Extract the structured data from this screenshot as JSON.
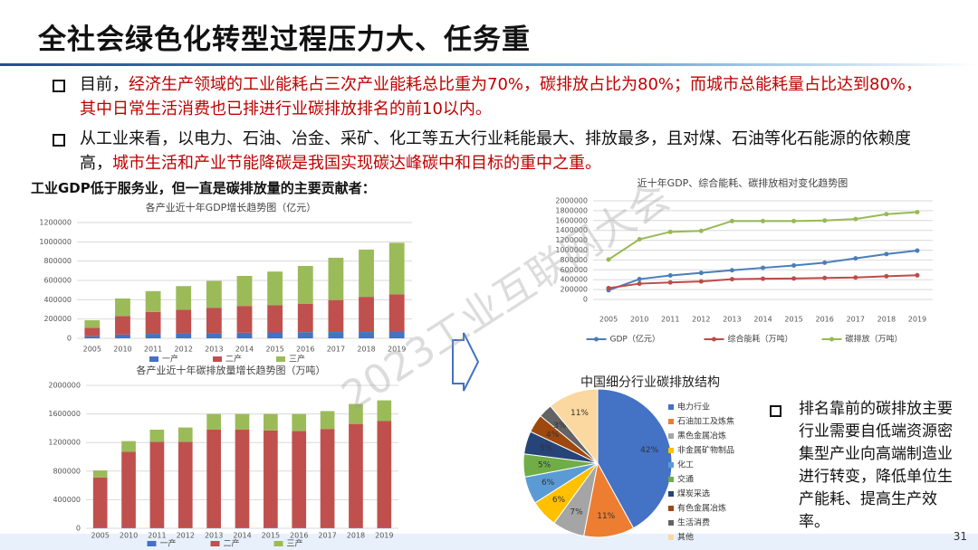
{
  "title": "全社会绿色化转型过程压力大、任务重",
  "bullets": [
    {
      "segments": [
        {
          "text": "目前，",
          "color": "#111111"
        },
        {
          "text": "经济生产领域的工业能耗占三次产业能耗总比重为70%，碳排放占比为80%；而城市总能耗量占比达到80%，其中日常生活消费也已排进行业碳排放排名的前10以内。",
          "color": "#c00000"
        }
      ]
    },
    {
      "segments": [
        {
          "text": "从工业来看，以电力、石油、冶金、采矿、化工等五大行业耗能最大、排放最多，且对煤、石油等化石能源的依赖度高，",
          "color": "#111111"
        },
        {
          "text": "城市生活和产业节能降碳是我国实现碳达峰碳中和目标的重中之重。",
          "color": "#c00000"
        }
      ]
    }
  ],
  "subheading": "工业GDP低于服务业，但一直是碳排放量的主要贡献者：",
  "side_note": "排名靠前的碳排放主要行业需要自低端资源密集型产业向高端制造业进行转变，降低单位生产能耗、提高生产效率。",
  "watermark": "2023工业互联网大会",
  "page_number": "31",
  "chart_data": [
    {
      "type": "bar",
      "stacked": true,
      "title": "各产业近十年GDP增长趋势图（亿元）",
      "categories": [
        "2005",
        "2010",
        "2011",
        "2012",
        "2013",
        "2014",
        "2015",
        "2016",
        "2017",
        "2018",
        "2019"
      ],
      "series": [
        {
          "name": "一产",
          "color": "#4472c4",
          "values": [
            22000,
            39000,
            46000,
            51000,
            55000,
            58000,
            61000,
            64000,
            65000,
            65000,
            70000
          ]
        },
        {
          "name": "二产",
          "color": "#c0504d",
          "values": [
            88000,
            192000,
            227000,
            245000,
            262000,
            278000,
            281000,
            295000,
            332000,
            365000,
            386000
          ]
        },
        {
          "name": "三产",
          "color": "#9bbb59",
          "values": [
            77000,
            182000,
            216000,
            245000,
            278000,
            311000,
            350000,
            391000,
            438000,
            490000,
            534000
          ]
        }
      ],
      "ylim": [
        0,
        1200000
      ],
      "yticks": [
        0,
        200000,
        400000,
        600000,
        800000,
        1000000,
        1200000
      ],
      "grid": true
    },
    {
      "type": "bar",
      "stacked": true,
      "title": "各产业近十年碳排放量增长趋势图（万吨）",
      "categories": [
        "2005",
        "2010",
        "2011",
        "2012",
        "2013",
        "2014",
        "2015",
        "2016",
        "2017",
        "2018",
        "2019"
      ],
      "series": [
        {
          "name": "一产",
          "color": "#4472c4",
          "values": [
            10000,
            10000,
            10000,
            10000,
            10000,
            10000,
            10000,
            10000,
            10000,
            10000,
            10000
          ]
        },
        {
          "name": "二产",
          "color": "#c0504d",
          "values": [
            700000,
            1060000,
            1200000,
            1200000,
            1370000,
            1370000,
            1360000,
            1350000,
            1380000,
            1450000,
            1490000
          ]
        },
        {
          "name": "三产",
          "color": "#9bbb59",
          "values": [
            100000,
            150000,
            170000,
            200000,
            220000,
            220000,
            230000,
            240000,
            250000,
            280000,
            290000
          ]
        }
      ],
      "ylim": [
        0,
        2000000
      ],
      "yticks": [
        0,
        400000,
        800000,
        1200000,
        1600000,
        2000000
      ],
      "grid": true
    },
    {
      "type": "line",
      "title": "近十年GDP、综合能耗、碳排放相对变化趋势图",
      "categories": [
        "2005",
        "2010",
        "2011",
        "2012",
        "2013",
        "2014",
        "2015",
        "2016",
        "2017",
        "2018",
        "2019"
      ],
      "series": [
        {
          "name": "GDP（亿元）",
          "color": "#4a7ebb",
          "values": [
            187000,
            412000,
            487000,
            538000,
            592000,
            641000,
            689000,
            746000,
            832000,
            919000,
            990000
          ]
        },
        {
          "name": "综合能耗（万吨）",
          "color": "#be4b48",
          "values": [
            230000,
            320000,
            345000,
            365000,
            410000,
            420000,
            425000,
            435000,
            445000,
            470000,
            490000
          ]
        },
        {
          "name": "碳排放（万吨）",
          "color": "#98b954",
          "values": [
            810000,
            1220000,
            1370000,
            1390000,
            1590000,
            1590000,
            1590000,
            1600000,
            1630000,
            1730000,
            1770000
          ]
        }
      ],
      "ylim": [
        0,
        2000000
      ],
      "yticks": [
        0,
        200000,
        400000,
        600000,
        800000,
        1000000,
        1200000,
        1400000,
        1600000,
        1800000,
        2000000
      ],
      "grid": true
    },
    {
      "type": "pie",
      "title": "中国细分行业碳排放结构",
      "categories": [
        "电力行业",
        "石油加工及炼焦",
        "黑色金属冶炼",
        "非金属矿物制品",
        "化工",
        "交通",
        "煤炭采选",
        "有色金属冶炼",
        "生活消费",
        "其他"
      ],
      "values": [
        42,
        11,
        7,
        6,
        6,
        5,
        5,
        4,
        3,
        11
      ],
      "value_labels": [
        "42%",
        "11%",
        "7%",
        "6%",
        "6%",
        "5%",
        "5%",
        "4%",
        "3%",
        "11%"
      ],
      "colors": [
        "#4472c4",
        "#ed7d31",
        "#a5a5a5",
        "#ffc000",
        "#5b9bd5",
        "#70ad47",
        "#264478",
        "#9e480e",
        "#636363",
        "#fbd8a0"
      ]
    }
  ]
}
